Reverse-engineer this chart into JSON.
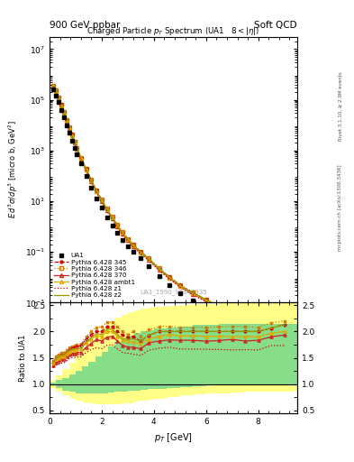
{
  "title_top_left": "900 GeV ppbar",
  "title_top_right": "Soft QCD",
  "main_title": "Charged Particle $p_T$ Spectrum (UA1   $8 < |\\eta|$)",
  "xlabel": "$p_T$ [GeV]",
  "ylabel_main": "$E\\,d^{3}\\sigma/dp^{3}$ [micro b, GeV$^{2}$]",
  "ylabel_ratio": "Ratio to UA1",
  "watermark": "UA1_1990_S2044935",
  "right_label1": "Rivet 3.1.10, ≥ 2.9M events",
  "right_label2": "mcplots.cern.ch [arXiv:1306.3436]",
  "ua1_pt": [
    0.15,
    0.25,
    0.35,
    0.45,
    0.55,
    0.65,
    0.75,
    0.85,
    0.95,
    1.05,
    1.2,
    1.4,
    1.6,
    1.8,
    2.0,
    2.2,
    2.4,
    2.6,
    2.8,
    3.0,
    3.2,
    3.5,
    3.8,
    4.2,
    4.6,
    5.0,
    5.5,
    6.0,
    6.5,
    7.0,
    7.5,
    8.0,
    8.5,
    9.0
  ],
  "ua1_y": [
    250000.0,
    150000.0,
    80000.0,
    40000.0,
    20000.0,
    10000.0,
    5000,
    2500,
    1300,
    700,
    300,
    100,
    35,
    13,
    5.5,
    2.3,
    1.1,
    0.55,
    0.3,
    0.17,
    0.1,
    0.055,
    0.028,
    0.011,
    0.005,
    0.0024,
    0.0012,
    0.00065,
    0.00035,
    0.0002,
    0.00011,
    6e-05,
    3e-05,
    1.5e-05
  ],
  "py345_pt": [
    0.15,
    0.25,
    0.35,
    0.45,
    0.55,
    0.65,
    0.75,
    0.85,
    0.95,
    1.05,
    1.2,
    1.4,
    1.6,
    1.8,
    2.0,
    2.2,
    2.4,
    2.6,
    2.8,
    3.0,
    3.2,
    3.5,
    3.8,
    4.2,
    4.6,
    5.0,
    5.5,
    6.0,
    6.5,
    7.0,
    7.5,
    8.0,
    8.5,
    9.0
  ],
  "py345_y": [
    350000.0,
    220000.0,
    120000.0,
    62000.0,
    31000.0,
    16000.0,
    8200,
    4200,
    2200,
    1200,
    520,
    185,
    68,
    26,
    11,
    4.8,
    2.3,
    1.1,
    0.58,
    0.32,
    0.19,
    0.1,
    0.054,
    0.022,
    0.01,
    0.0048,
    0.0024,
    0.0013,
    0.0007,
    0.0004,
    0.00022,
    0.00012,
    6.2e-05,
    3.2e-05
  ],
  "py346_pt": [
    0.15,
    0.25,
    0.35,
    0.45,
    0.55,
    0.65,
    0.75,
    0.85,
    0.95,
    1.05,
    1.2,
    1.4,
    1.6,
    1.8,
    2.0,
    2.2,
    2.4,
    2.6,
    2.8,
    3.0,
    3.2,
    3.5,
    3.8,
    4.2,
    4.6,
    5.0,
    5.5,
    6.0,
    6.5,
    7.0,
    7.5,
    8.0,
    8.5,
    9.0
  ],
  "py346_y": [
    360000.0,
    230000.0,
    125000.0,
    64000.0,
    32000.0,
    16500.0,
    8500,
    4300,
    2250,
    1220,
    530,
    190,
    70,
    27,
    11.5,
    5.0,
    2.4,
    1.15,
    0.6,
    0.33,
    0.2,
    0.105,
    0.057,
    0.023,
    0.0105,
    0.005,
    0.0025,
    0.00135,
    0.00073,
    0.00042,
    0.00023,
    0.000125,
    6.5e-05,
    3.3e-05
  ],
  "py370_pt": [
    0.15,
    0.25,
    0.35,
    0.45,
    0.55,
    0.65,
    0.75,
    0.85,
    0.95,
    1.05,
    1.2,
    1.4,
    1.6,
    1.8,
    2.0,
    2.2,
    2.4,
    2.6,
    2.8,
    3.0,
    3.2,
    3.5,
    3.8,
    4.2,
    4.6,
    5.0,
    5.5,
    6.0,
    6.5,
    7.0,
    7.5,
    8.0,
    8.5,
    9.0
  ],
  "py370_y": [
    340000.0,
    210000.0,
    115000.0,
    59000.0,
    29500.0,
    15200.0,
    7800,
    3950,
    2060,
    1120,
    480,
    170,
    62,
    24,
    10,
    4.35,
    2.1,
    1.0,
    0.52,
    0.29,
    0.17,
    0.092,
    0.05,
    0.02,
    0.0092,
    0.0044,
    0.0022,
    0.00118,
    0.00064,
    0.00037,
    0.0002,
    0.00011,
    5.7e-05,
    2.9e-05
  ],
  "pyambt1_pt": [
    0.15,
    0.25,
    0.35,
    0.45,
    0.55,
    0.65,
    0.75,
    0.85,
    0.95,
    1.05,
    1.2,
    1.4,
    1.6,
    1.8,
    2.0,
    2.2,
    2.4,
    2.6,
    2.8,
    3.0,
    3.2,
    3.5,
    3.8,
    4.2,
    4.6,
    5.0,
    5.5,
    6.0,
    6.5,
    7.0,
    7.5,
    8.0,
    8.5,
    9.0
  ],
  "pyambt1_y": [
    350000.0,
    220000.0,
    120000.0,
    61000.0,
    30500.0,
    15700.0,
    8100,
    4100,
    2140,
    1160,
    500,
    178,
    65,
    25,
    10.5,
    4.6,
    2.2,
    1.05,
    0.55,
    0.31,
    0.18,
    0.097,
    0.052,
    0.021,
    0.0097,
    0.0046,
    0.0023,
    0.00124,
    0.00067,
    0.00038,
    0.00021,
    0.000114,
    5.9e-05,
    3e-05
  ],
  "pyz1_pt": [
    0.15,
    0.25,
    0.35,
    0.45,
    0.55,
    0.65,
    0.75,
    0.85,
    0.95,
    1.05,
    1.2,
    1.4,
    1.6,
    1.8,
    2.0,
    2.2,
    2.4,
    2.6,
    2.8,
    3.0,
    3.2,
    3.5,
    3.8,
    4.2,
    4.6,
    5.0,
    5.5,
    6.0,
    6.5,
    7.0,
    7.5,
    8.0,
    8.5,
    9.0
  ],
  "pyz1_y": [
    330000.0,
    205000.0,
    110000.0,
    56000.0,
    28000.0,
    14400.0,
    7400,
    3750,
    1950,
    1060,
    455,
    160,
    58,
    22,
    9.2,
    4.0,
    1.92,
    0.92,
    0.48,
    0.27,
    0.157,
    0.085,
    0.046,
    0.0185,
    0.0085,
    0.004,
    0.002,
    0.00108,
    0.00058,
    0.00033,
    0.000182,
    9.9e-05,
    5.2e-05,
    2.6e-05
  ],
  "pyz2_pt": [
    0.15,
    0.25,
    0.35,
    0.45,
    0.55,
    0.65,
    0.75,
    0.85,
    0.95,
    1.05,
    1.2,
    1.4,
    1.6,
    1.8,
    2.0,
    2.2,
    2.4,
    2.6,
    2.8,
    3.0,
    3.2,
    3.5,
    3.8,
    4.2,
    4.6,
    5.0,
    5.5,
    6.0,
    6.5,
    7.0,
    7.5,
    8.0,
    8.5,
    9.0
  ],
  "pyz2_y": [
    355000.0,
    222000.0,
    121000.0,
    62000.0,
    31000.0,
    16000.0,
    8200,
    4150,
    2170,
    1175,
    505,
    180,
    66,
    25.5,
    10.7,
    4.7,
    2.25,
    1.07,
    0.56,
    0.315,
    0.186,
    0.1,
    0.054,
    0.022,
    0.01,
    0.0048,
    0.0024,
    0.0013,
    0.0007,
    0.0004,
    0.00022,
    0.00012,
    6.2e-05,
    3.2e-05
  ],
  "color_345": "#cc0000",
  "color_346": "#cc7700",
  "color_370": "#cc2222",
  "color_ambt1": "#ddaa00",
  "color_z1": "#cc0000",
  "color_z2": "#999900",
  "color_ua1": "#000000",
  "color_green": "#88dd88",
  "color_yellow": "#ffff88",
  "xlim": [
    0,
    9.5
  ],
  "ylim_main": [
    0.001,
    30000000.0
  ],
  "ylim_ratio": [
    0.44,
    2.55
  ],
  "ratio_yticks": [
    0.5,
    1.0,
    1.5,
    2.0,
    2.5
  ],
  "band_bins": [
    0.0,
    0.25,
    0.5,
    0.75,
    1.0,
    1.25,
    1.5,
    1.75,
    2.0,
    2.25,
    2.5,
    2.75,
    3.0,
    3.25,
    3.5,
    3.75,
    4.0,
    4.5,
    5.0,
    5.5,
    6.0,
    6.5,
    7.0,
    7.5,
    8.0,
    8.5,
    9.0,
    9.5
  ],
  "green_lo": [
    0.97,
    0.92,
    0.88,
    0.85,
    0.83,
    0.82,
    0.82,
    0.82,
    0.83,
    0.84,
    0.85,
    0.86,
    0.87,
    0.88,
    0.89,
    0.9,
    0.91,
    0.93,
    0.95,
    0.96,
    0.97,
    0.98,
    0.98,
    0.98,
    0.98,
    0.98,
    0.98
  ],
  "green_hi": [
    1.03,
    1.08,
    1.12,
    1.18,
    1.25,
    1.33,
    1.42,
    1.52,
    1.62,
    1.72,
    1.8,
    1.87,
    1.92,
    1.97,
    2.0,
    2.03,
    2.05,
    2.08,
    2.1,
    2.12,
    2.13,
    2.14,
    2.15,
    2.15,
    2.15,
    2.15,
    2.15
  ],
  "yellow_lo": [
    0.93,
    0.85,
    0.78,
    0.72,
    0.68,
    0.65,
    0.63,
    0.62,
    0.61,
    0.61,
    0.62,
    0.63,
    0.64,
    0.66,
    0.68,
    0.7,
    0.72,
    0.75,
    0.78,
    0.8,
    0.82,
    0.83,
    0.84,
    0.85,
    0.85,
    0.85,
    0.85
  ],
  "yellow_hi": [
    1.07,
    1.17,
    1.28,
    1.4,
    1.54,
    1.68,
    1.82,
    1.96,
    2.08,
    2.18,
    2.26,
    2.32,
    2.37,
    2.41,
    2.43,
    2.45,
    2.47,
    2.49,
    2.51,
    2.52,
    2.53,
    2.54,
    2.55,
    2.55,
    2.55,
    2.55,
    2.55
  ]
}
